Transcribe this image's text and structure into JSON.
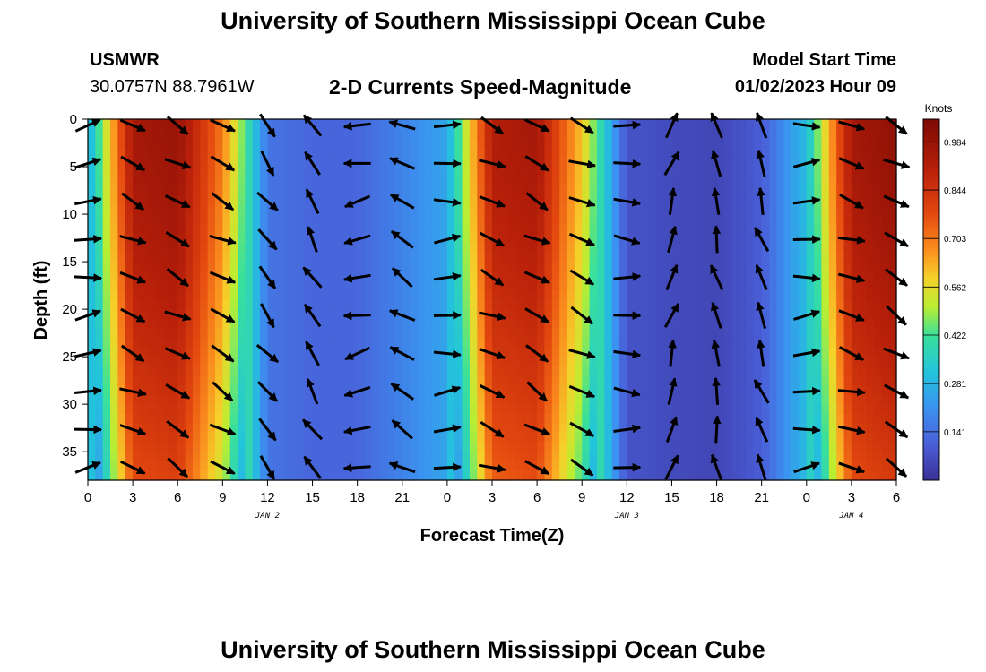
{
  "header": {
    "title": "University of Southern Mississippi Ocean Cube",
    "station": "USMWR",
    "coords": "30.0757N  88.7961W",
    "subtitle": "2-D Currents Speed-Magnitude",
    "model_start_label": "Model Start Time",
    "model_start_value": "01/02/2023 Hour 09"
  },
  "footer": {
    "title": "University of Southern Mississippi Ocean Cube"
  },
  "chart_data": {
    "type": "heatmap",
    "xlabel": "Forecast Time(Z)",
    "ylabel": "Depth (ft)",
    "x_tick_labels": [
      "0",
      "3",
      "6",
      "9",
      "12",
      "15",
      "18",
      "21",
      "0",
      "3",
      "6",
      "9",
      "12",
      "15",
      "18",
      "21",
      "0",
      "3",
      "6"
    ],
    "x_range_hours": [
      0,
      54
    ],
    "y_ticks": [
      0,
      5,
      10,
      15,
      20,
      25,
      30,
      35
    ],
    "y_range_ft": [
      0,
      38
    ],
    "y_inverted": true,
    "day_labels": [
      {
        "label": "JAN 2",
        "hour": 12
      },
      {
        "label": "JAN 3",
        "hour": 36
      },
      {
        "label": "JAN 4",
        "hour": 51
      }
    ],
    "colorbar": {
      "unit": "Knots",
      "ticks": [
        0.141,
        0.281,
        0.422,
        0.562,
        0.703,
        0.844,
        0.984
      ],
      "range": [
        0.0,
        1.05
      ]
    },
    "vector_depths_ft": [
      0,
      4,
      8,
      12,
      16,
      20,
      24,
      28,
      32,
      36
    ],
    "vector_hours": [
      0,
      3,
      6,
      9,
      12,
      15,
      18,
      21,
      24,
      27,
      30,
      33,
      36,
      39,
      42,
      45,
      48,
      51,
      54
    ],
    "speed_by_hour_approx": [
      0.25,
      0.95,
      0.98,
      0.7,
      0.15,
      0.12,
      0.12,
      0.18,
      0.25,
      0.92,
      0.95,
      0.6,
      0.08,
      0.06,
      0.05,
      0.1,
      0.3,
      0.95,
      1.0
    ],
    "direction_by_hour_deg_approx": [
      80,
      115,
      120,
      120,
      140,
      330,
      260,
      300,
      85,
      115,
      120,
      115,
      95,
      20,
      350,
      340,
      85,
      110,
      120
    ],
    "grid": false
  }
}
